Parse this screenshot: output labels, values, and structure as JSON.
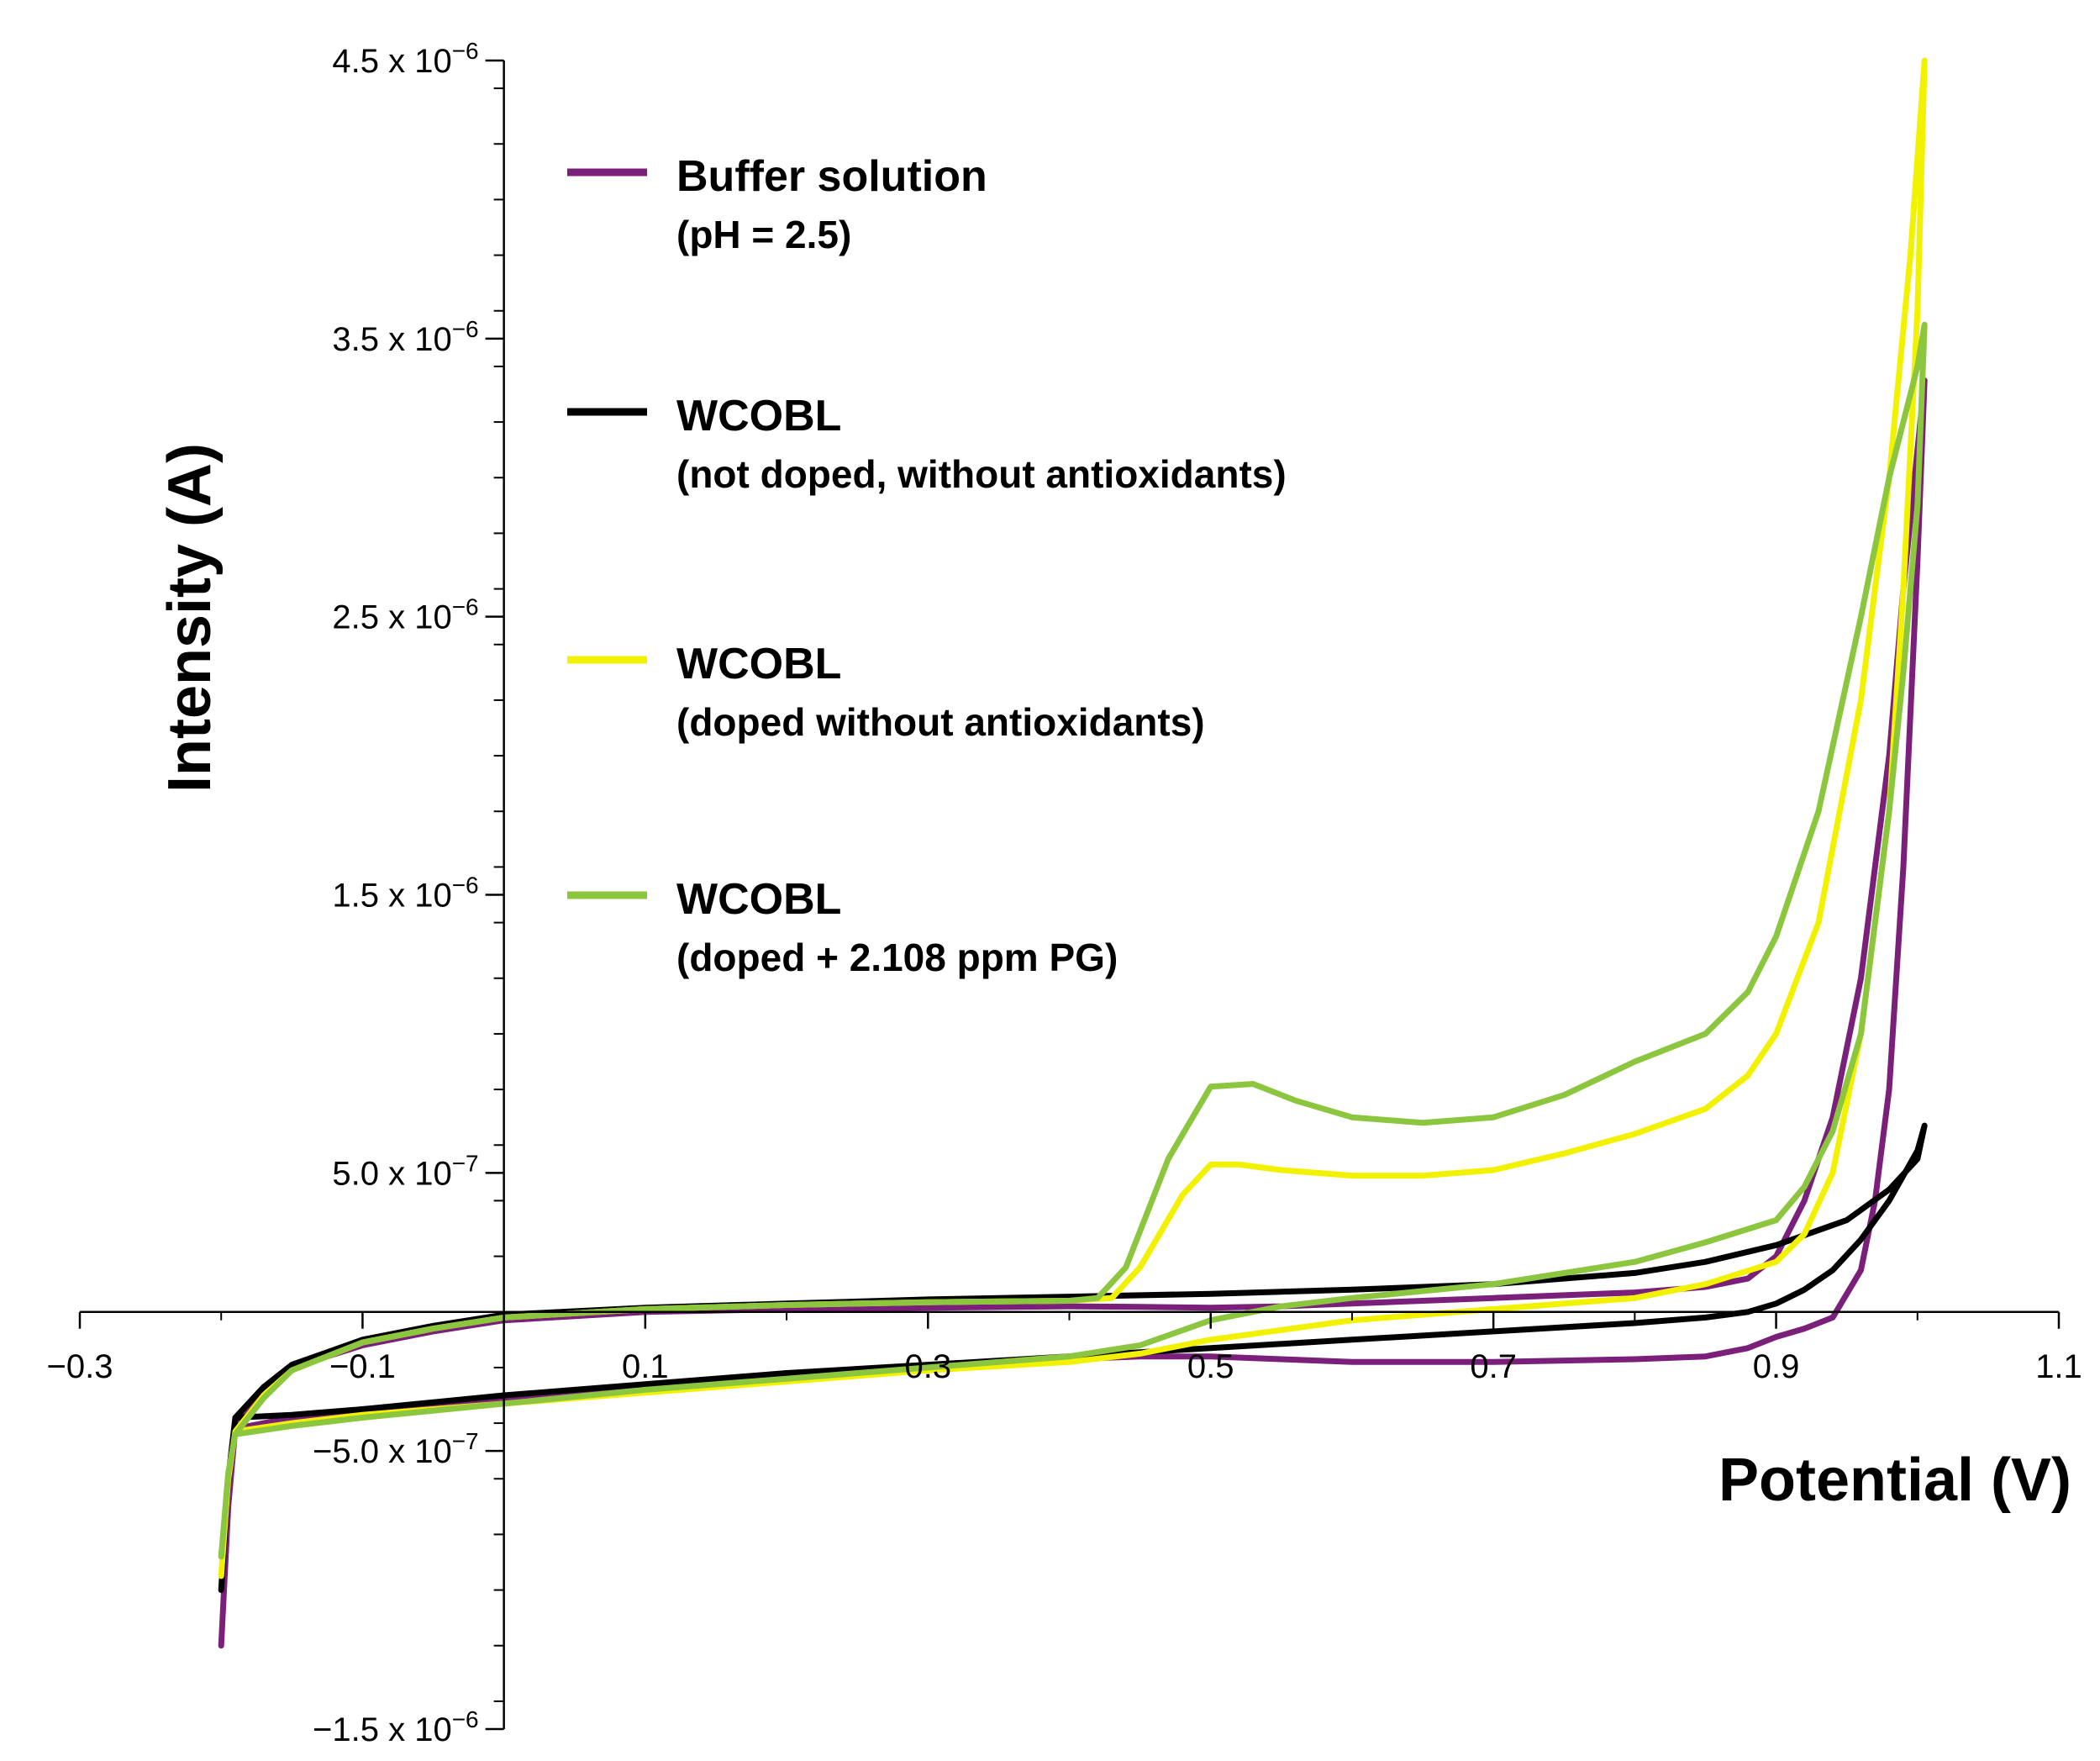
{
  "chart_data": {
    "type": "line",
    "title": "",
    "xlabel": "Potential (V)",
    "ylabel": "Intensity (A)",
    "xlim": [
      -0.3,
      1.1
    ],
    "ylim": [
      -1.5e-06,
      4.5e-06
    ],
    "x_ticks": [
      {
        "value": -0.3,
        "label": "−0.3"
      },
      {
        "value": -0.1,
        "label": "−0.1"
      },
      {
        "value": 0.1,
        "label": "0.1"
      },
      {
        "value": 0.3,
        "label": "0.3"
      },
      {
        "value": 0.5,
        "label": "0.5"
      },
      {
        "value": 0.7,
        "label": "0.7"
      },
      {
        "value": 0.9,
        "label": "0.9"
      },
      {
        "value": 1.1,
        "label": "1.1"
      }
    ],
    "y_ticks": [
      {
        "value": 4.5e-06,
        "mantissa": "4.5 x 10",
        "exp": "−6"
      },
      {
        "value": 3.5e-06,
        "mantissa": "3.5 x 10",
        "exp": "−6"
      },
      {
        "value": 2.5e-06,
        "mantissa": "2.5 x 10",
        "exp": "−6"
      },
      {
        "value": 1.5e-06,
        "mantissa": "1.5 x 10",
        "exp": "−6"
      },
      {
        "value": 5e-07,
        "mantissa": "5.0 x 10",
        "exp": "−7"
      },
      {
        "value": -5e-07,
        "mantissa": "−5.0 x 10",
        "exp": "−7"
      },
      {
        "value": -1.5e-06,
        "mantissa": "−1.5 x 10",
        "exp": "−6"
      }
    ],
    "y_minor_step": 2e-07,
    "legend": [
      {
        "line1": "Buffer solution",
        "line2": "(pH = 2.5)",
        "color": "#7a1f7a"
      },
      {
        "line1": "WCOBL",
        "line2": "(not doped, without antioxidants)",
        "color": "#000000"
      },
      {
        "line1": "WCOBL",
        "line2": "(doped without antioxidants)",
        "color": "#f2f200"
      },
      {
        "line1": "WCOBL",
        "line2": "(doped + 2.108 ppm PG)",
        "color": "#8cc63f"
      }
    ],
    "series": [
      {
        "name": "Buffer solution (pH = 2.5)",
        "color": "#7a1f7a",
        "points": [
          [
            -0.2,
            -1.2e-06
          ],
          [
            -0.195,
            -7e-07
          ],
          [
            -0.19,
            -4.2e-07
          ],
          [
            -0.17,
            -2.8e-07
          ],
          [
            -0.15,
            -2e-07
          ],
          [
            -0.1,
            -1.2e-07
          ],
          [
            -0.05,
            -7e-08
          ],
          [
            0.0,
            -3e-08
          ],
          [
            0.1,
            0.0
          ],
          [
            0.2,
            1e-08
          ],
          [
            0.3,
            1.5e-08
          ],
          [
            0.4,
            2e-08
          ],
          [
            0.45,
            1.8e-08
          ],
          [
            0.5,
            1.5e-08
          ],
          [
            0.55,
            2e-08
          ],
          [
            0.6,
            3e-08
          ],
          [
            0.65,
            4e-08
          ],
          [
            0.7,
            5e-08
          ],
          [
            0.75,
            6e-08
          ],
          [
            0.8,
            7e-08
          ],
          [
            0.85,
            9e-08
          ],
          [
            0.88,
            1.2e-07
          ],
          [
            0.9,
            2e-07
          ],
          [
            0.92,
            4e-07
          ],
          [
            0.94,
            7e-07
          ],
          [
            0.96,
            1.2e-06
          ],
          [
            0.98,
            2e-06
          ],
          [
            0.99,
            2.6e-06
          ],
          [
            1.005,
            3.35e-06
          ],
          [
            1.0,
            2.7e-06
          ],
          [
            0.99,
            1.6e-06
          ],
          [
            0.98,
            8e-07
          ],
          [
            0.97,
            4e-07
          ],
          [
            0.96,
            1.5e-07
          ],
          [
            0.94,
            -2e-08
          ],
          [
            0.92,
            -6e-08
          ],
          [
            0.9,
            -9e-08
          ],
          [
            0.88,
            -1.3e-07
          ],
          [
            0.85,
            -1.6e-07
          ],
          [
            0.8,
            -1.7e-07
          ],
          [
            0.75,
            -1.75e-07
          ],
          [
            0.7,
            -1.8e-07
          ],
          [
            0.6,
            -1.8e-07
          ],
          [
            0.55,
            -1.7e-07
          ],
          [
            0.5,
            -1.6e-07
          ],
          [
            0.45,
            -1.6e-07
          ],
          [
            0.4,
            -1.7e-07
          ],
          [
            0.3,
            -2e-07
          ],
          [
            0.2,
            -2.4e-07
          ],
          [
            0.1,
            -2.8e-07
          ],
          [
            0.0,
            -3.2e-07
          ],
          [
            -0.1,
            -3.5e-07
          ],
          [
            -0.15,
            -3.8e-07
          ],
          [
            -0.19,
            -4.2e-07
          ]
        ]
      },
      {
        "name": "WCOBL (not doped, without antioxidants)",
        "color": "#000000",
        "points": [
          [
            -0.2,
            -1e-06
          ],
          [
            -0.195,
            -6e-07
          ],
          [
            -0.19,
            -3.8e-07
          ],
          [
            -0.17,
            -2.7e-07
          ],
          [
            -0.15,
            -1.9e-07
          ],
          [
            -0.1,
            -1e-07
          ],
          [
            -0.05,
            -5e-08
          ],
          [
            0.0,
            -1e-08
          ],
          [
            0.1,
            1.5e-08
          ],
          [
            0.2,
            3e-08
          ],
          [
            0.3,
            4.5e-08
          ],
          [
            0.4,
            5.5e-08
          ],
          [
            0.5,
            6.5e-08
          ],
          [
            0.6,
            8e-08
          ],
          [
            0.7,
            1e-07
          ],
          [
            0.8,
            1.4e-07
          ],
          [
            0.85,
            1.8e-07
          ],
          [
            0.9,
            2.4e-07
          ],
          [
            0.95,
            3.3e-07
          ],
          [
            0.98,
            4.4e-07
          ],
          [
            1.0,
            5.5e-07
          ],
          [
            1.005,
            6.7e-07
          ],
          [
            1.0,
            5.8e-07
          ],
          [
            0.98,
            4e-07
          ],
          [
            0.96,
            2.6e-07
          ],
          [
            0.94,
            1.5e-07
          ],
          [
            0.92,
            8e-08
          ],
          [
            0.9,
            3e-08
          ],
          [
            0.88,
            0.0
          ],
          [
            0.85,
            -2e-08
          ],
          [
            0.8,
            -4e-08
          ],
          [
            0.7,
            -7e-08
          ],
          [
            0.6,
            -1e-07
          ],
          [
            0.5,
            -1.3e-07
          ],
          [
            0.4,
            -1.6e-07
          ],
          [
            0.3,
            -1.9e-07
          ],
          [
            0.2,
            -2.2e-07
          ],
          [
            0.1,
            -2.6e-07
          ],
          [
            0.0,
            -3e-07
          ],
          [
            -0.1,
            -3.5e-07
          ],
          [
            -0.15,
            -3.7e-07
          ],
          [
            -0.19,
            -3.8e-07
          ]
        ]
      },
      {
        "name": "WCOBL (doped without antioxidants)",
        "color": "#f2f200",
        "points": [
          [
            -0.2,
            -9.5e-07
          ],
          [
            -0.195,
            -6e-07
          ],
          [
            -0.19,
            -4.3e-07
          ],
          [
            -0.17,
            -3e-07
          ],
          [
            -0.15,
            -2.1e-07
          ],
          [
            -0.1,
            -1.1e-07
          ],
          [
            -0.05,
            -6e-08
          ],
          [
            0.0,
            -2e-08
          ],
          [
            0.1,
            1e-08
          ],
          [
            0.2,
            2.5e-08
          ],
          [
            0.3,
            3.5e-08
          ],
          [
            0.4,
            4e-08
          ],
          [
            0.43,
            5e-08
          ],
          [
            0.45,
            1.6e-07
          ],
          [
            0.48,
            4.2e-07
          ],
          [
            0.5,
            5.3e-07
          ],
          [
            0.52,
            5.3e-07
          ],
          [
            0.55,
            5.1e-07
          ],
          [
            0.6,
            4.9e-07
          ],
          [
            0.65,
            4.9e-07
          ],
          [
            0.7,
            5.1e-07
          ],
          [
            0.75,
            5.7e-07
          ],
          [
            0.8,
            6.4e-07
          ],
          [
            0.85,
            7.3e-07
          ],
          [
            0.88,
            8.5e-07
          ],
          [
            0.9,
            1e-06
          ],
          [
            0.93,
            1.4e-06
          ],
          [
            0.96,
            2.2e-06
          ],
          [
            0.98,
            3e-06
          ],
          [
            0.995,
            3.8e-06
          ],
          [
            1.005,
            4.5e-06
          ],
          [
            1.0,
            3.6e-06
          ],
          [
            0.99,
            2.6e-06
          ],
          [
            0.98,
            1.8e-06
          ],
          [
            0.96,
            1e-06
          ],
          [
            0.94,
            5e-07
          ],
          [
            0.92,
            2.8e-07
          ],
          [
            0.9,
            1.8e-07
          ],
          [
            0.85,
            1e-07
          ],
          [
            0.8,
            5e-08
          ],
          [
            0.7,
            1e-08
          ],
          [
            0.6,
            -3e-08
          ],
          [
            0.5,
            -1e-07
          ],
          [
            0.45,
            -1.5e-07
          ],
          [
            0.4,
            -1.8e-07
          ],
          [
            0.3,
            -2.1e-07
          ],
          [
            0.2,
            -2.5e-07
          ],
          [
            0.1,
            -2.9e-07
          ],
          [
            0.0,
            -3.3e-07
          ],
          [
            -0.1,
            -3.7e-07
          ],
          [
            -0.15,
            -4e-07
          ],
          [
            -0.19,
            -4.3e-07
          ]
        ]
      },
      {
        "name": "WCOBL (doped + 2.108 ppm PG)",
        "color": "#8cc63f",
        "points": [
          [
            -0.2,
            -8.8e-07
          ],
          [
            -0.195,
            -5.8e-07
          ],
          [
            -0.19,
            -4.4e-07
          ],
          [
            -0.17,
            -3.1e-07
          ],
          [
            -0.15,
            -2.1e-07
          ],
          [
            -0.1,
            -1.1e-07
          ],
          [
            -0.05,
            -6e-08
          ],
          [
            0.0,
            -2e-08
          ],
          [
            0.1,
            1e-08
          ],
          [
            0.2,
            2.5e-08
          ],
          [
            0.3,
            3.5e-08
          ],
          [
            0.4,
            4e-08
          ],
          [
            0.42,
            5e-08
          ],
          [
            0.44,
            1.6e-07
          ],
          [
            0.47,
            5.5e-07
          ],
          [
            0.5,
            8.1e-07
          ],
          [
            0.53,
            8.2e-07
          ],
          [
            0.56,
            7.6e-07
          ],
          [
            0.6,
            7e-07
          ],
          [
            0.65,
            6.8e-07
          ],
          [
            0.7,
            7e-07
          ],
          [
            0.75,
            7.8e-07
          ],
          [
            0.8,
            9e-07
          ],
          [
            0.85,
            1e-06
          ],
          [
            0.88,
            1.15e-06
          ],
          [
            0.9,
            1.35e-06
          ],
          [
            0.93,
            1.8e-06
          ],
          [
            0.96,
            2.5e-06
          ],
          [
            0.98,
            3e-06
          ],
          [
            1.0,
            3.4e-06
          ],
          [
            1.005,
            3.55e-06
          ],
          [
            1.0,
            2.9e-06
          ],
          [
            0.99,
            2.3e-06
          ],
          [
            0.98,
            1.8e-06
          ],
          [
            0.96,
            1e-06
          ],
          [
            0.94,
            6.5e-07
          ],
          [
            0.92,
            4.5e-07
          ],
          [
            0.9,
            3.3e-07
          ],
          [
            0.85,
            2.5e-07
          ],
          [
            0.8,
            1.8e-07
          ],
          [
            0.7,
            1e-07
          ],
          [
            0.6,
            5e-08
          ],
          [
            0.55,
            2e-08
          ],
          [
            0.5,
            -3e-08
          ],
          [
            0.45,
            -1.2e-07
          ],
          [
            0.4,
            -1.6e-07
          ],
          [
            0.3,
            -2e-07
          ],
          [
            0.2,
            -2.4e-07
          ],
          [
            0.1,
            -2.8e-07
          ],
          [
            0.0,
            -3.3e-07
          ],
          [
            -0.1,
            -3.8e-07
          ],
          [
            -0.15,
            -4.1e-07
          ],
          [
            -0.19,
            -4.4e-07
          ]
        ]
      }
    ]
  }
}
